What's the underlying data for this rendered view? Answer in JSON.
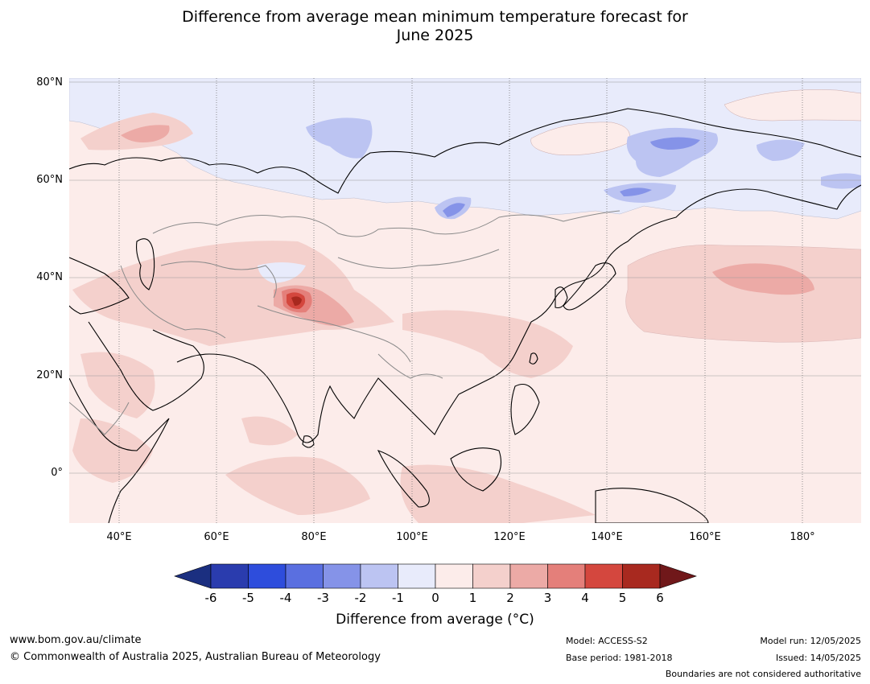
{
  "title": {
    "line1": "Difference from average mean minimum temperature forecast for",
    "line2": "June 2025"
  },
  "map": {
    "lat_labels": [
      "80°N",
      "60°N",
      "40°N",
      "20°N",
      "0°"
    ],
    "lon_labels": [
      "40°E",
      "60°E",
      "80°E",
      "100°E",
      "120°E",
      "140°E",
      "160°E",
      "180°"
    ],
    "background_color": "#fcecea"
  },
  "colorbar": {
    "ticks": [
      "-6",
      "-5",
      "-4",
      "-3",
      "-2",
      "-1",
      "0",
      "1",
      "2",
      "3",
      "4",
      "5",
      "6"
    ],
    "colors": [
      "#1b2f80",
      "#2a3cae",
      "#2e4ddc",
      "#5a6fe0",
      "#8593e8",
      "#bcc4f2",
      "#e8ebfb",
      "#fcecea",
      "#f4d0cc",
      "#ecaaa6",
      "#e47f7a",
      "#d4473e",
      "#a8291f",
      "#70181a"
    ],
    "title": "Difference from average (°C)"
  },
  "footer": {
    "website": "www.bom.gov.au/climate",
    "copyright": "© Commonwealth of Australia 2025, Australian Bureau of Meteorology",
    "model": "Model: ACCESS-S2",
    "base_period": "Base period: 1981-2018",
    "model_run": "Model run: 12/05/2025",
    "issued": "Issued: 14/05/2025",
    "disclaimer": "Boundaries are not considered authoritative"
  }
}
